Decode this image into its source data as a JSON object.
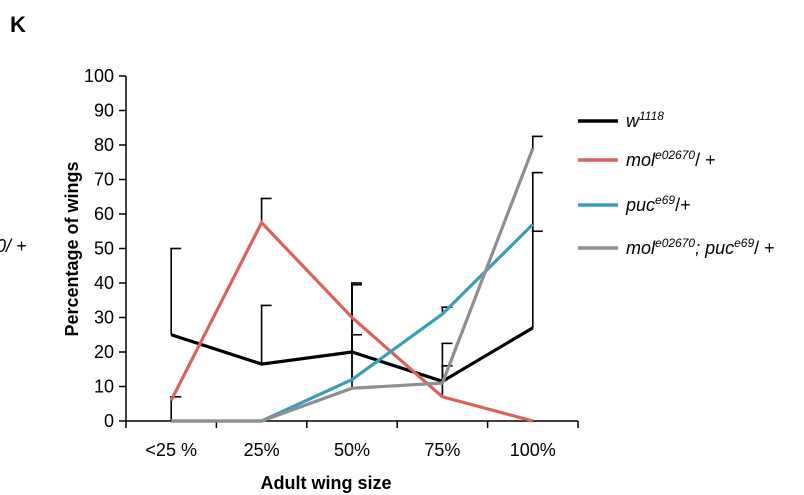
{
  "panel": {
    "letter": "K",
    "clipped_text": "0/ +"
  },
  "chart_data": {
    "type": "line",
    "xlabel": "Adult wing size",
    "ylabel": "Percentage of wings",
    "categories": [
      "<25 %",
      "25%",
      "50%",
      "75%",
      "100%"
    ],
    "ylim": [
      0,
      100
    ],
    "yticks": [
      0,
      10,
      20,
      30,
      40,
      50,
      60,
      70,
      80,
      90,
      100
    ],
    "grid": false,
    "legend_position": "right",
    "series": [
      {
        "name": "w1118",
        "label_base": "w",
        "label_sup": "1118",
        "label_mid": "",
        "label_sup2": "",
        "label_tail": "",
        "color": "#000000",
        "values": [
          25,
          16.5,
          20,
          11.5,
          27
        ],
        "error_top": [
          50,
          33.5,
          39.5,
          16,
          72
        ]
      },
      {
        "name": "mole02670/ +",
        "label_base": "mol",
        "label_sup": "e02670",
        "label_mid": "",
        "label_sup2": "",
        "label_tail": "/ +",
        "color": "#d9625e",
        "values": [
          6,
          57.5,
          30,
          7,
          0
        ],
        "error_top": [
          null,
          64.5,
          40,
          22.5,
          null
        ]
      },
      {
        "name": "puce69/+",
        "label_base": "puc",
        "label_sup": "e69",
        "label_mid": "",
        "label_sup2": "",
        "label_tail": "/+",
        "color": "#3a9db8",
        "values": [
          0,
          0,
          12,
          31,
          57
        ],
        "error_top": [
          null,
          null,
          25,
          33,
          55
        ]
      },
      {
        "name": "mole02670; puce69/ +",
        "label_base": "mol",
        "label_sup": "e02670",
        "label_mid": "; puc",
        "label_sup2": "e69",
        "label_tail": "/ +",
        "color": "#8f8f8f",
        "values": [
          0,
          0,
          9.5,
          11,
          79
        ],
        "error_top": [
          7,
          null,
          39.5,
          16,
          82.5
        ]
      }
    ]
  }
}
